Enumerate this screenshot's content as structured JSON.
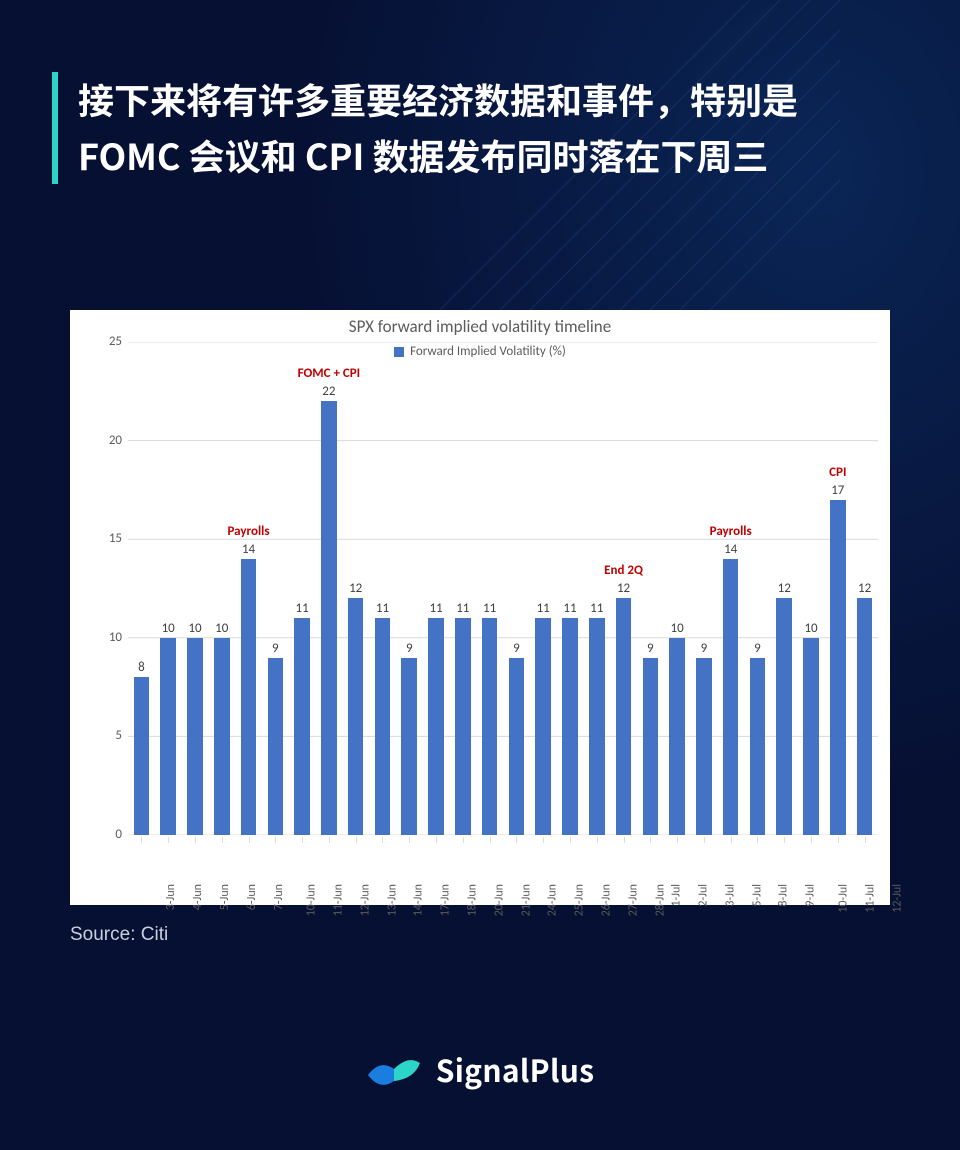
{
  "headline": "接下来将有许多重要经济数据和事件，特别是 FOMC 会议和 CPI 数据发布同时落在下周三",
  "source_label": "Source: Citi",
  "brand": "SignalPlus",
  "colors": {
    "page_bg": "#061033",
    "accent": "#2dd4c9",
    "card_bg": "#ffffff",
    "bar": "#4472c4",
    "grid": "#d9d9d9",
    "chart_text": "#5b5b5b",
    "value_text": "#404040",
    "annotation": "#c00000",
    "source_text": "#c9cfdc"
  },
  "chart": {
    "type": "bar",
    "title": "SPX forward implied volatility timeline",
    "legend_label": "Forward Implied Volatility (%)",
    "ylim": [
      0,
      25
    ],
    "ytick_step": 5,
    "yticks": [
      0,
      5,
      10,
      15,
      20,
      25
    ],
    "bar_color": "#4472c4",
    "grid_color": "#d9d9d9",
    "background_color": "#ffffff",
    "title_fontsize": 17,
    "label_fontsize": 13,
    "value_fontsize": 13,
    "annotation_fontsize": 13,
    "bar_width_ratio": 0.58,
    "categories": [
      "3-Jun",
      "4-Jun",
      "5-Jun",
      "6-Jun",
      "7-Jun",
      "10-Jun",
      "11-Jun",
      "12-Jun",
      "13-Jun",
      "14-Jun",
      "17-Jun",
      "18-Jun",
      "20-Jun",
      "21-Jun",
      "24-Jun",
      "25-Jun",
      "26-Jun",
      "27-Jun",
      "28-Jun",
      "1-Jul",
      "2-Jul",
      "3-Jul",
      "5-Jul",
      "8-Jul",
      "9-Jul",
      "10-Jul",
      "11-Jul",
      "12-Jul"
    ],
    "values": [
      8,
      10,
      10,
      10,
      14,
      9,
      11,
      22,
      12,
      11,
      9,
      11,
      11,
      11,
      9,
      11,
      11,
      11,
      12,
      9,
      10,
      9,
      14,
      9,
      12,
      10,
      17,
      12
    ],
    "annotations": [
      {
        "index": 4,
        "text": "Payrolls"
      },
      {
        "index": 7,
        "text": "FOMC + CPI"
      },
      {
        "index": 18,
        "text": "End 2Q"
      },
      {
        "index": 22,
        "text": "Payrolls"
      },
      {
        "index": 26,
        "text": "CPI"
      }
    ]
  }
}
